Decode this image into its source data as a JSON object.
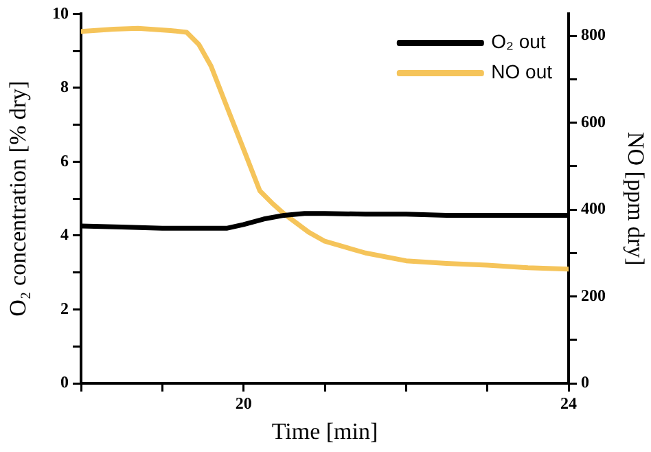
{
  "chart_data": {
    "type": "line",
    "xlabel": "Time [min]",
    "ylabel": "O₂ concentration [% dry]",
    "y2label": "NO [ppm dry]",
    "xlim": [
      18,
      24
    ],
    "xticks": [
      {
        "value": 18,
        "label": null
      },
      {
        "value": 19,
        "label": null
      },
      20,
      {
        "value": 21,
        "label": null
      },
      {
        "value": 22,
        "label": null
      },
      {
        "value": 23,
        "label": null
      },
      24
    ],
    "ylim": [
      0,
      10
    ],
    "yticks": [
      0,
      {
        "value": 1,
        "label": null
      },
      2,
      {
        "value": 3,
        "label": null
      },
      4,
      {
        "value": 5,
        "label": null
      },
      6,
      {
        "value": 7,
        "label": null
      },
      8,
      {
        "value": 9,
        "label": null
      },
      10
    ],
    "y2lim": [
      0,
      850
    ],
    "y2ticks": [
      0,
      {
        "value": 100,
        "label": null
      },
      200,
      {
        "value": 300,
        "label": null
      },
      400,
      {
        "value": 500,
        "label": null
      },
      600,
      {
        "value": 700,
        "label": null
      },
      800
    ],
    "grid": false,
    "legend": "top right",
    "marker": "none",
    "line_style": "solid",
    "series": [
      {
        "name": "O₂ out",
        "color": "#000000",
        "x": [
          18,
          18.5,
          19,
          19.5,
          19.8,
          20,
          20.25,
          20.5,
          20.75,
          21,
          21.5,
          22,
          22.5,
          23,
          23.5,
          24
        ],
        "values": [
          4.26,
          4.23,
          4.2,
          4.2,
          4.2,
          4.3,
          4.45,
          4.55,
          4.6,
          4.6,
          4.58,
          4.58,
          4.55,
          4.55,
          4.55,
          4.55
        ]
      },
      {
        "name": "NO out",
        "color": "#f5c45a",
        "axis": "y2",
        "x": [
          18,
          18.4,
          18.7,
          19.1,
          19.3,
          19.45,
          19.6,
          19.8,
          20,
          20.2,
          20.35,
          20.5,
          20.8,
          21,
          21.5,
          22,
          22.5,
          23,
          23.5,
          24
        ],
        "values": [
          810,
          815,
          817,
          812,
          808,
          780,
          730,
          634,
          539,
          443,
          415,
          390,
          348,
          327,
          300,
          282,
          276,
          272,
          266,
          263
        ]
      }
    ]
  }
}
